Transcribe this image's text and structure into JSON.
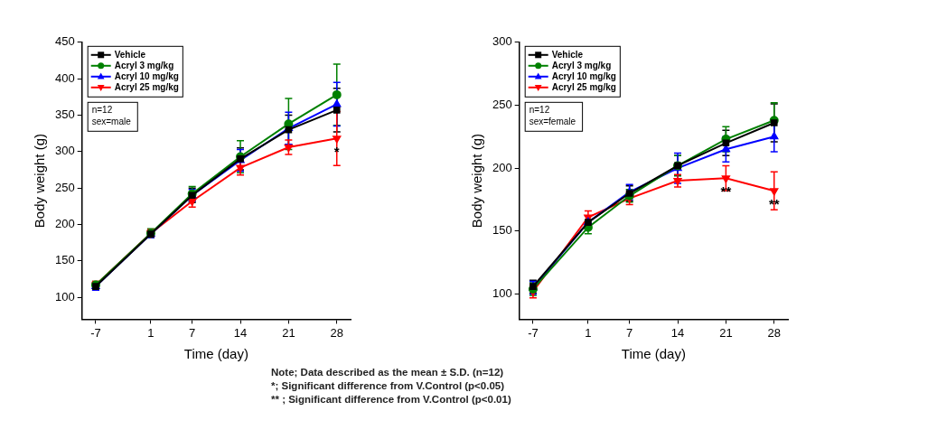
{
  "chart_data": [
    {
      "type": "line",
      "x_label": "Time (day)",
      "y_label": "Body weight (g)",
      "x": [
        -7,
        1,
        7,
        14,
        21,
        28
      ],
      "xlim": [
        -9,
        30
      ],
      "xticks": [
        -7,
        1,
        7,
        14,
        21,
        28
      ],
      "ylim": [
        70,
        450
      ],
      "yticks": [
        100,
        150,
        200,
        250,
        300,
        350,
        400,
        450
      ],
      "grid": false,
      "legend": "upper left",
      "text_box": [
        "n=12",
        "sex=male"
      ],
      "series": [
        {
          "name": "Vehicle",
          "color": "#000000",
          "marker": "square",
          "values": [
            115,
            187,
            240,
            290,
            330,
            357
          ],
          "errors": [
            5,
            5,
            10,
            15,
            20,
            30
          ]
        },
        {
          "name": "Acryl 3 mg/kg",
          "color": "#008000",
          "marker": "circle",
          "values": [
            117,
            188,
            242,
            293,
            338,
            378
          ],
          "errors": [
            5,
            6,
            10,
            22,
            35,
            42
          ]
        },
        {
          "name": "Acryl 10 mg/kg",
          "color": "#0000ff",
          "marker": "triangle-up",
          "values": [
            115,
            187,
            240,
            288,
            332,
            365
          ],
          "errors": [
            5,
            5,
            8,
            15,
            22,
            30
          ]
        },
        {
          "name": "Acryl 25 mg/kg",
          "color": "#ff0000",
          "marker": "triangle-down",
          "values": [
            117,
            188,
            232,
            278,
            306,
            318
          ],
          "errors": [
            5,
            5,
            8,
            10,
            10,
            37
          ]
        }
      ],
      "annotations": [
        {
          "series": "Acryl 25 mg/kg",
          "x": 28,
          "text": "*"
        }
      ]
    },
    {
      "type": "line",
      "x_label": "Time (day)",
      "y_label": "Body weight (g)",
      "x": [
        -7,
        1,
        7,
        14,
        21,
        28
      ],
      "xlim": [
        -9,
        30
      ],
      "xticks": [
        -7,
        1,
        7,
        14,
        21,
        28
      ],
      "ylim": [
        80,
        300
      ],
      "yticks": [
        100,
        150,
        200,
        250,
        300
      ],
      "grid": false,
      "legend": "upper left",
      "text_box": [
        "n=12",
        "sex=female"
      ],
      "series": [
        {
          "name": "Vehicle",
          "color": "#000000",
          "marker": "square",
          "values": [
            106,
            157,
            180,
            202,
            220,
            236
          ],
          "errors": [
            5,
            5,
            6,
            8,
            10,
            15
          ]
        },
        {
          "name": "Acryl 3 mg/kg",
          "color": "#008000",
          "marker": "circle",
          "values": [
            104,
            153,
            178,
            202,
            223,
            238
          ],
          "errors": [
            5,
            5,
            5,
            8,
            10,
            14
          ]
        },
        {
          "name": "Acryl 10 mg/kg",
          "color": "#0000ff",
          "marker": "triangle-up",
          "values": [
            105,
            157,
            181,
            200,
            215,
            225
          ],
          "errors": [
            5,
            5,
            6,
            12,
            10,
            12
          ]
        },
        {
          "name": "Acryl 25 mg/kg",
          "color": "#ff0000",
          "marker": "triangle-down",
          "values": [
            102,
            161,
            176,
            190,
            192,
            182
          ],
          "errors": [
            5,
            5,
            5,
            5,
            10,
            15
          ]
        }
      ],
      "annotations": [
        {
          "series": "Acryl 25 mg/kg",
          "x": 21,
          "text": "**"
        },
        {
          "series": "Acryl 25 mg/kg",
          "x": 28,
          "text": "**"
        }
      ]
    }
  ],
  "note": [
    "Note; Data described as the mean ± S.D. (n=12)",
    "*; Significant difference from V.Control (p<0.05)",
    "** ; Significant difference from V.Control (p<0.01)"
  ]
}
